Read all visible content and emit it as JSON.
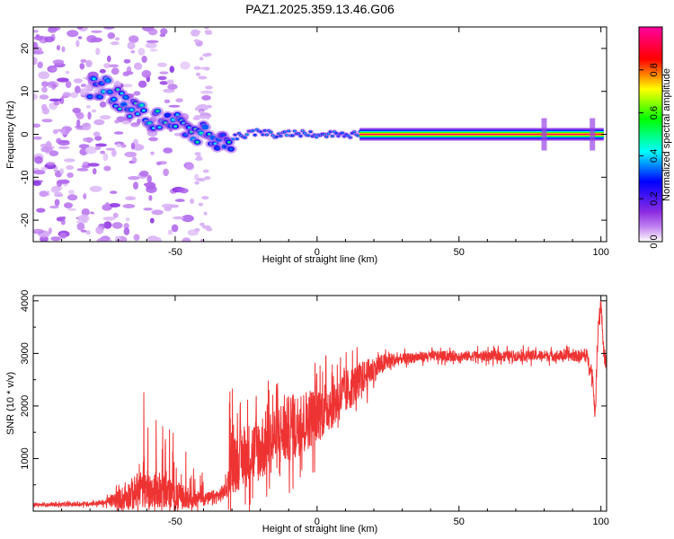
{
  "title": "PAZ1.2025.359.13.46.G06",
  "chart_data": [
    {
      "type": "heatmap",
      "title": "PAZ1.2025.359.13.46.G06",
      "xlabel": "Height of straight line (km)",
      "ylabel": "Frequency (Hz)",
      "xlim": [
        -100,
        102
      ],
      "ylim": [
        -25,
        25
      ],
      "xticks": [
        -50,
        0,
        50,
        100
      ],
      "yticks": [
        -20,
        -10,
        0,
        10,
        20
      ],
      "colorbar": {
        "label": "Normalized spectral amplitude",
        "range": [
          0,
          1
        ],
        "ticks": [
          "0.0",
          "0.2",
          "0.4",
          "0.6",
          "0.8"
        ],
        "tick_values": [
          0.0,
          0.2,
          0.4,
          0.6,
          0.8
        ],
        "colors": [
          "#ffffff",
          "#a020f0",
          "#0000ff",
          "#00ffff",
          "#00ff00",
          "#ffff00",
          "#ff0000",
          "#ff00a0"
        ]
      },
      "ridge": {
        "description": "dominant frequency track",
        "points": [
          [
            -75,
            11
          ],
          [
            -70,
            8
          ],
          [
            -65,
            6
          ],
          [
            -60,
            4
          ],
          [
            -55,
            3
          ],
          [
            -50,
            3
          ],
          [
            -45,
            1
          ],
          [
            -40,
            0
          ],
          [
            -35,
            -3
          ],
          [
            -30,
            -1
          ],
          [
            -25,
            0
          ],
          [
            -20,
            0.5
          ],
          [
            -15,
            0
          ],
          [
            -10,
            0.3
          ],
          [
            -5,
            0.3
          ],
          [
            0,
            0
          ],
          [
            5,
            0
          ],
          [
            10,
            0
          ],
          [
            15,
            0
          ],
          [
            20,
            0
          ],
          [
            100,
            0
          ]
        ],
        "strong_from": 15
      }
    },
    {
      "type": "line",
      "xlabel": "Height of straight line (km)",
      "ylabel": "SNR (10 * v/v)",
      "xlim": [
        -100,
        102
      ],
      "ylim": [
        0,
        4100
      ],
      "xticks": [
        -50,
        0,
        50,
        100
      ],
      "yticks": [
        1000,
        2000,
        3000,
        4000
      ],
      "color": "#ee3333",
      "trend": [
        [
          -100,
          120
        ],
        [
          -85,
          130
        ],
        [
          -75,
          160
        ],
        [
          -70,
          230
        ],
        [
          -65,
          330
        ],
        [
          -60,
          430
        ],
        [
          -55,
          400
        ],
        [
          -50,
          300
        ],
        [
          -45,
          250
        ],
        [
          -40,
          220
        ],
        [
          -35,
          280
        ],
        [
          -32,
          400
        ],
        [
          -30,
          900
        ],
        [
          -25,
          1050
        ],
        [
          -20,
          1200
        ],
        [
          -15,
          1400
        ],
        [
          -10,
          1550
        ],
        [
          -5,
          1700
        ],
        [
          0,
          1850
        ],
        [
          5,
          2050
        ],
        [
          10,
          2250
        ],
        [
          15,
          2500
        ],
        [
          20,
          2700
        ],
        [
          25,
          2850
        ],
        [
          30,
          2900
        ],
        [
          40,
          2950
        ],
        [
          60,
          2950
        ],
        [
          80,
          2960
        ],
        [
          95,
          2950
        ],
        [
          97,
          2600
        ],
        [
          98,
          1800
        ],
        [
          99,
          3500
        ],
        [
          100,
          4000
        ],
        [
          101,
          3000
        ],
        [
          102,
          2800
        ]
      ],
      "noise": [
        [
          -100,
          30
        ],
        [
          -75,
          60
        ],
        [
          -62,
          500
        ],
        [
          -50,
          350
        ],
        [
          -40,
          150
        ],
        [
          -32,
          200
        ],
        [
          -30,
          700
        ],
        [
          -20,
          800
        ],
        [
          -10,
          800
        ],
        [
          0,
          700
        ],
        [
          10,
          550
        ],
        [
          20,
          300
        ],
        [
          30,
          120
        ],
        [
          90,
          130
        ],
        [
          102,
          200
        ]
      ]
    }
  ]
}
